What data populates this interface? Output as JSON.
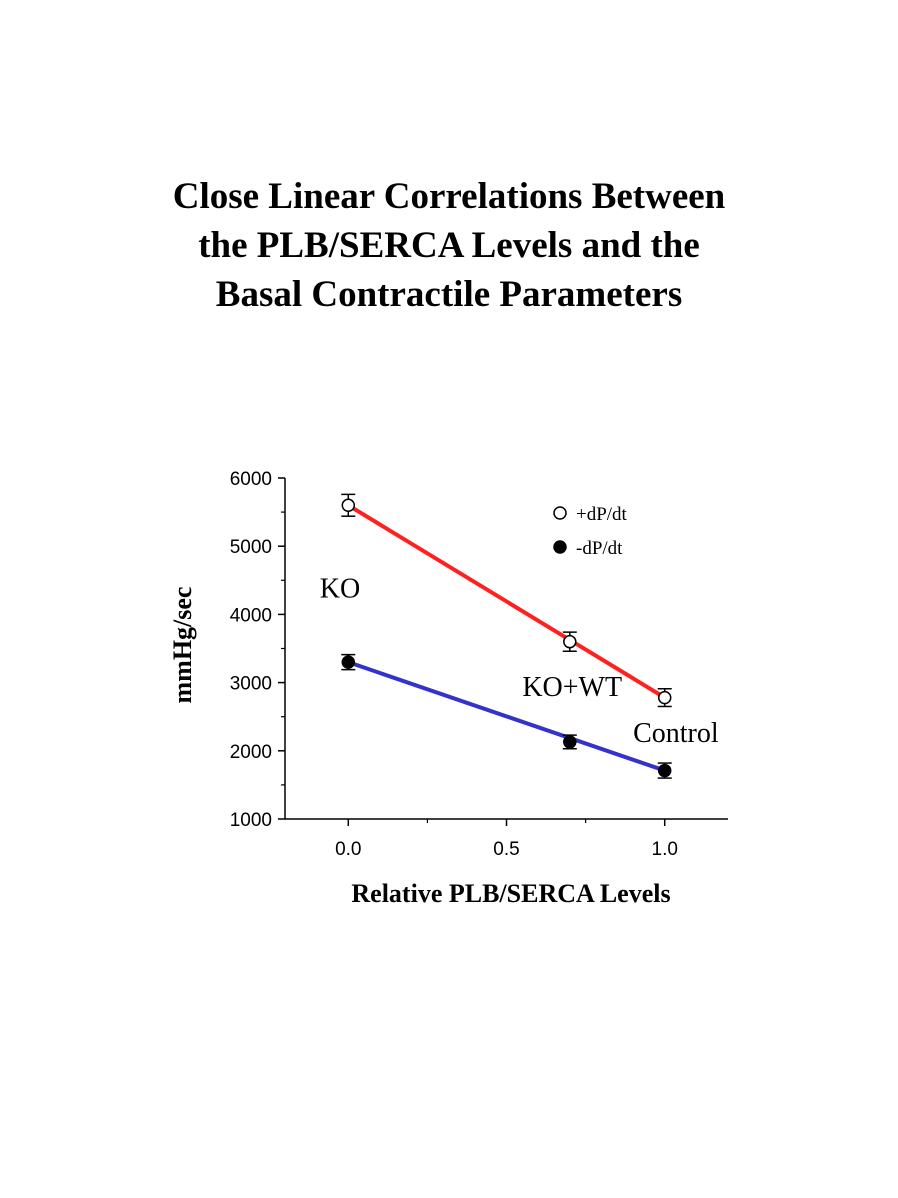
{
  "title_lines": [
    "Close Linear Correlations Between",
    "the PLB/SERCA Levels and the",
    "Basal Contractile Parameters"
  ],
  "chart_data": {
    "type": "scatter",
    "xlabel": "Relative PLB/SERCA Levels",
    "ylabel": "mmHg/sec",
    "xlim": [
      -0.2,
      1.2
    ],
    "ylim": [
      1000,
      6000
    ],
    "x_ticks": [
      0.0,
      0.5,
      1.0
    ],
    "x_tick_labels": [
      "0.0",
      "0.5",
      "1.0"
    ],
    "y_ticks": [
      1000,
      2000,
      3000,
      4000,
      5000,
      6000
    ],
    "y_tick_labels": [
      "1000",
      "2000",
      "3000",
      "4000",
      "5000",
      "6000"
    ],
    "legend_position": "top-right",
    "series": [
      {
        "name": "+dP/dt",
        "marker": "open-circle",
        "color": "#ff2020",
        "x": [
          0.0,
          0.7,
          1.0
        ],
        "y": [
          5600,
          3600,
          2780
        ],
        "error": [
          160,
          140,
          130
        ],
        "fit": {
          "x": [
            0.0,
            1.0
          ],
          "y": [
            5600,
            2780
          ]
        }
      },
      {
        "name": "-dP/dt",
        "marker": "filled-circle",
        "color": "#3333cc",
        "x": [
          0.0,
          0.7,
          1.0
        ],
        "y": [
          3300,
          2130,
          1710
        ],
        "error": [
          110,
          100,
          110
        ],
        "fit": {
          "x": [
            0.0,
            1.0
          ],
          "y": [
            3300,
            1710
          ]
        }
      }
    ],
    "annotations": [
      {
        "text": "KO",
        "x": -0.09,
        "y": 4250
      },
      {
        "text": "KO+WT",
        "x": 0.55,
        "y": 2800
      },
      {
        "text": "Control",
        "x": 0.9,
        "y": 2130
      }
    ]
  }
}
